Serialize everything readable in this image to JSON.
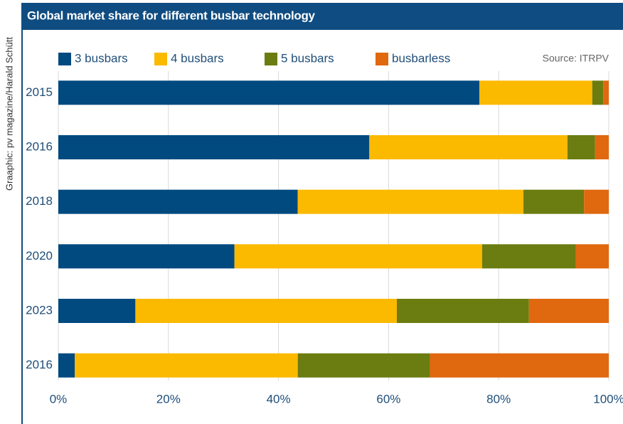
{
  "chart_data": {
    "type": "stacked_barh",
    "title": "Global market share for different busbar technology",
    "source": "Source: ITRPV",
    "credit": "Graaphic: pv magazine/Harald Schütt",
    "categories": [
      "2015",
      "2016",
      "2018",
      "2020",
      "2023",
      "2016"
    ],
    "series": [
      {
        "name": "3 busbars",
        "color": "#004a80",
        "values": [
          76.5,
          56.5,
          43.5,
          32,
          14,
          3
        ]
      },
      {
        "name": "4 busbars",
        "color": "#fbb900",
        "values": [
          20.5,
          36,
          41,
          45,
          47.5,
          40.5
        ]
      },
      {
        "name": "5 busbars",
        "color": "#6b7c10",
        "values": [
          2,
          5,
          11,
          17,
          24,
          24
        ]
      },
      {
        "name": "busbarless",
        "color": "#e0680f",
        "values": [
          1,
          2.5,
          4.5,
          6,
          14.5,
          32.5
        ]
      }
    ],
    "xlim": [
      0,
      100
    ],
    "xticks": [
      {
        "value": 0,
        "label": "0%"
      },
      {
        "value": 20,
        "label": "20%"
      },
      {
        "value": 40,
        "label": "40%"
      },
      {
        "value": 60,
        "label": "60%"
      },
      {
        "value": 80,
        "label": "80%"
      },
      {
        "value": 100,
        "label": "100%"
      }
    ],
    "grid": true
  }
}
